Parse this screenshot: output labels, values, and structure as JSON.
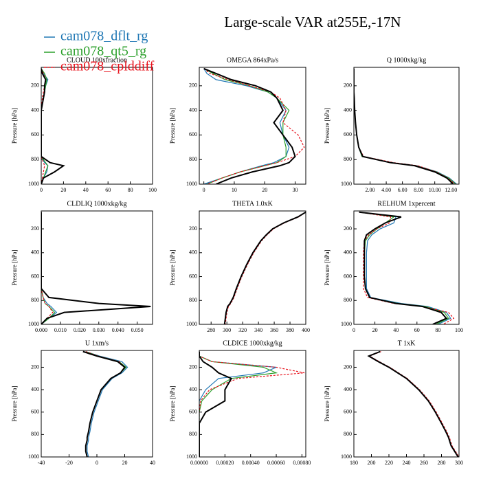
{
  "title": "Large-scale VAR at255E,-17N",
  "ylabel": "Pressure [hPa]",
  "levels": [
    60,
    100,
    150,
    200,
    250,
    300,
    400,
    500,
    600,
    700,
    775,
    825,
    850,
    900,
    950,
    1000
  ],
  "ylim": [
    1000,
    50
  ],
  "yticks": [
    200,
    400,
    600,
    800,
    1000
  ],
  "legend": [
    {
      "name": "cam078_dflt_rg",
      "color": "#1f77b4"
    },
    {
      "name": "cam078_qt5_rg",
      "color": "#2ca02c"
    },
    {
      "name": "cam078_cplddiff",
      "color": "#e8141e",
      "dash": true
    },
    {
      "color": "#000000",
      "width": 2
    }
  ],
  "chart_data": [
    {
      "type": "line",
      "title": "CLOUD 100xfraction",
      "xlim": [
        0,
        100
      ],
      "xticks": [
        0,
        20,
        40,
        60,
        80,
        100
      ],
      "series": [
        {
          "values": [
            0,
            2,
            6,
            4,
            3,
            2,
            0,
            0,
            0,
            0,
            0,
            3,
            6,
            5,
            2,
            0
          ]
        },
        {
          "values": [
            0,
            3,
            5,
            4,
            3,
            2,
            0,
            0,
            0,
            0,
            0,
            4,
            6,
            4,
            2,
            0
          ]
        },
        {
          "values": [
            0,
            2,
            4,
            3,
            2,
            1,
            0,
            0,
            0,
            0,
            0,
            2,
            3,
            2,
            1,
            0
          ]
        },
        {
          "values": [
            0,
            1,
            4,
            3,
            3,
            2,
            0,
            0,
            0,
            0,
            0,
            8,
            20,
            12,
            2,
            0
          ]
        }
      ]
    },
    {
      "type": "line",
      "title": "OMEGA  864xPa/s",
      "xlim": [
        -1.5,
        33.5
      ],
      "xticks": [
        0,
        10,
        20,
        30
      ],
      "series": [
        {
          "values": [
            0,
            1,
            4,
            14,
            21,
            24,
            27,
            25,
            26,
            28,
            27,
            23,
            19,
            12,
            6,
            0
          ]
        },
        {
          "values": [
            0,
            3,
            7,
            15,
            21,
            24,
            28,
            26,
            26,
            27,
            27,
            24,
            20,
            12,
            6,
            1
          ]
        },
        {
          "values": [
            0,
            2,
            8,
            15,
            22,
            25,
            27,
            26,
            31,
            33,
            30,
            24,
            20,
            12,
            6,
            1
          ]
        },
        {
          "values": [
            0,
            4,
            9,
            17,
            22,
            24,
            26,
            23,
            26,
            29,
            30,
            28,
            25,
            16,
            9,
            4
          ]
        }
      ]
    },
    {
      "type": "line",
      "title": "Q  1000xkg/kg",
      "xlim": [
        0,
        13
      ],
      "xticks": [
        {
          "value": 2,
          "label": "2.00"
        },
        {
          "value": 4,
          "label": "4.00"
        },
        {
          "value": 6,
          "label": "6.00"
        },
        {
          "value": 8,
          "label": "8.00"
        },
        {
          "value": 10,
          "label": "10.00"
        },
        {
          "value": 12,
          "label": "12.00"
        }
      ],
      "series": [
        {
          "values": [
            0,
            0,
            0,
            0,
            0,
            0.05,
            0.1,
            0.2,
            0.35,
            0.6,
            1.0,
            4.7,
            7.8,
            10.3,
            11.8,
            12.7
          ]
        },
        {
          "values": [
            0,
            0,
            0,
            0,
            0,
            0.05,
            0.1,
            0.2,
            0.35,
            0.6,
            1.0,
            4.6,
            7.7,
            10.2,
            11.7,
            12.6
          ]
        },
        {
          "values": [
            0,
            0,
            0,
            0,
            0,
            0.05,
            0.1,
            0.2,
            0.35,
            0.6,
            1.2,
            4.9,
            7.9,
            10.2,
            11.6,
            12.5
          ]
        },
        {
          "values": [
            0,
            0,
            0,
            0,
            0,
            0.05,
            0.1,
            0.2,
            0.35,
            0.6,
            1.1,
            4.5,
            7.5,
            10,
            11.5,
            12.3
          ]
        }
      ]
    },
    {
      "type": "line",
      "title": "CLDLIQ  1000xkg/kg",
      "xlim": [
        0,
        0.058
      ],
      "xticks": [
        {
          "value": 0,
          "label": "0.000"
        },
        {
          "value": 0.01,
          "label": "0.010"
        },
        {
          "value": 0.02,
          "label": "0.020"
        },
        {
          "value": 0.03,
          "label": "0.030"
        },
        {
          "value": 0.04,
          "label": "0.040"
        },
        {
          "value": 0.05,
          "label": "0.050"
        }
      ],
      "series": [
        {
          "values": [
            0,
            0,
            0,
            0,
            0,
            0,
            0,
            0,
            0,
            0,
            0.001,
            0.003,
            0.005,
            0.008,
            0.004,
            0
          ]
        },
        {
          "values": [
            0,
            0,
            0,
            0,
            0,
            0,
            0,
            0,
            0,
            0,
            0.001,
            0.002,
            0.004,
            0.007,
            0.004,
            0
          ]
        },
        {
          "values": [
            0,
            0,
            0,
            0,
            0,
            0,
            0,
            0,
            0,
            0,
            0.001,
            0.002,
            0.004,
            0.006,
            0.003,
            0
          ]
        },
        {
          "values": [
            0,
            0,
            0,
            0,
            0,
            0,
            0,
            0,
            0,
            0,
            0.004,
            0.03,
            0.057,
            0.012,
            0.003,
            0
          ]
        }
      ]
    },
    {
      "type": "line",
      "title": "THETA  1.0xK",
      "xlim": [
        265,
        400
      ],
      "xticks": [
        280,
        300,
        320,
        340,
        360,
        380,
        400
      ],
      "series": [
        {
          "values": [
            400,
            390,
            372,
            358,
            350,
            343,
            333,
            325,
            318,
            312,
            308,
            304,
            301,
            299,
            298,
            297
          ]
        },
        {
          "values": [
            400,
            390,
            372,
            358,
            350,
            343,
            333,
            325,
            318,
            312,
            308,
            304,
            301,
            299,
            298,
            297
          ]
        },
        {
          "values": [
            400,
            391,
            373,
            359,
            351,
            344,
            334,
            326,
            319,
            313,
            309,
            305,
            302,
            300,
            299,
            298
          ]
        },
        {
          "values": [
            400,
            390,
            372,
            358,
            350,
            343,
            333,
            325,
            318,
            312,
            308,
            304,
            301,
            299,
            298,
            297
          ]
        }
      ]
    },
    {
      "type": "line",
      "title": "RELHUM  1xpercent",
      "xlim": [
        0,
        100
      ],
      "xticks": [
        0,
        20,
        40,
        60,
        80,
        100
      ],
      "series": [
        {
          "values": [
            5,
            40,
            38,
            25,
            17,
            13,
            12,
            12,
            12,
            12,
            16,
            45,
            70,
            88,
            92,
            80
          ]
        },
        {
          "values": [
            5,
            38,
            30,
            22,
            15,
            11,
            10,
            10,
            10,
            11,
            15,
            42,
            68,
            86,
            90,
            78
          ]
        },
        {
          "values": [
            5,
            35,
            34,
            22,
            14,
            10,
            9,
            9,
            9,
            9,
            13,
            38,
            65,
            90,
            95,
            85
          ]
        },
        {
          "values": [
            5,
            45,
            30,
            20,
            12,
            10,
            10,
            10,
            10,
            11,
            15,
            40,
            65,
            83,
            88,
            75
          ]
        }
      ]
    },
    {
      "type": "line",
      "title": "U  1xm/s",
      "xlim": [
        -40,
        40
      ],
      "xticks": [
        -40,
        -20,
        0,
        20,
        40
      ],
      "series": [
        {
          "values": [
            -8,
            2,
            18,
            22,
            18,
            11,
            4,
            1,
            -2,
            -4,
            -5,
            -6,
            -6,
            -7,
            -7,
            -6
          ]
        },
        {
          "values": [
            -8,
            1,
            16,
            21,
            17,
            10,
            3,
            0,
            -3,
            -5,
            -6,
            -7,
            -7,
            -8,
            -8,
            -7
          ]
        },
        {
          "values": [
            -8,
            1,
            16,
            20,
            17,
            10,
            3,
            0,
            -3,
            -5,
            -6,
            -7,
            -7,
            -8,
            -8,
            -7
          ]
        },
        {
          "values": [
            -10,
            0,
            15,
            20,
            17,
            10,
            3,
            0,
            -3,
            -5,
            -6,
            -7,
            -7,
            -8,
            -8,
            -7
          ]
        }
      ]
    },
    {
      "type": "line",
      "title": "CLDICE  1000xkg/kg",
      "xlim": [
        0,
        0.00083
      ],
      "xticks": [
        {
          "value": 0,
          "label": "0.00000"
        },
        {
          "value": 0.0002,
          "label": "0.00020"
        },
        {
          "value": 0.0004,
          "label": "0.00040"
        },
        {
          "value": 0.0006,
          "label": "0.00060"
        },
        {
          "value": 0.0008,
          "label": "0.00080"
        }
      ],
      "series": [
        {
          "values": [
            0,
            0,
            0.0001,
            0.0006,
            0.0005,
            0.00015,
            5e-05,
            0,
            0,
            0,
            0,
            0,
            0,
            0,
            0,
            0
          ]
        },
        {
          "values": [
            0,
            0,
            0.0001,
            0.0005,
            0.0006,
            0.00025,
            0.0001,
            2e-05,
            0,
            0,
            0,
            0,
            0,
            0,
            0,
            0
          ]
        },
        {
          "values": [
            0,
            0,
            0.0001,
            0.0006,
            0.00082,
            0.0003,
            8e-05,
            1e-05,
            0,
            0,
            0,
            0,
            0,
            0,
            0,
            0
          ]
        },
        {
          "values": [
            0,
            0,
            3e-05,
            0.0001,
            0.00015,
            0.00025,
            0.0002,
            0.0002,
            5e-05,
            0,
            0,
            0,
            0,
            0,
            0,
            0
          ]
        }
      ]
    },
    {
      "type": "line",
      "title": "T  1xK",
      "xlim": [
        180,
        300
      ],
      "xticks": [
        180,
        200,
        220,
        240,
        260,
        280,
        300
      ],
      "series": [
        {
          "values": [
            210,
            197,
            208,
            220,
            230,
            240,
            254,
            265,
            273,
            280,
            285,
            288,
            289,
            291,
            295,
            299
          ]
        },
        {
          "values": [
            210,
            197,
            208,
            220,
            230,
            240,
            254,
            265,
            273,
            280,
            285,
            288,
            289,
            291,
            295,
            299
          ]
        },
        {
          "values": [
            211,
            198,
            209,
            221,
            231,
            241,
            255,
            266,
            274,
            281,
            286,
            289,
            290,
            292,
            296,
            300
          ]
        },
        {
          "values": [
            210,
            197,
            208,
            220,
            230,
            240,
            254,
            265,
            273,
            280,
            285,
            288,
            289,
            291,
            295,
            299
          ]
        }
      ]
    }
  ]
}
